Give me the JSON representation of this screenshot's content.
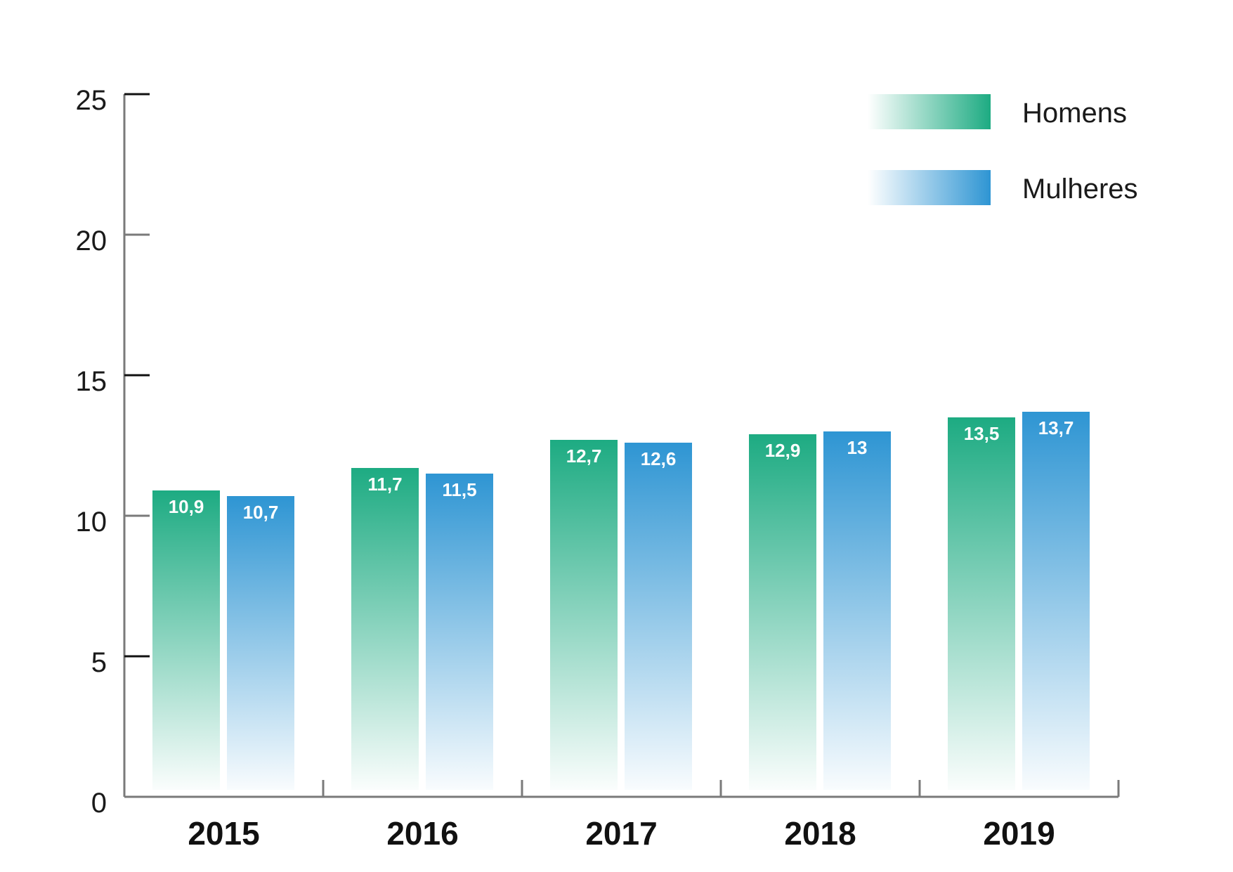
{
  "chart_data": {
    "type": "bar",
    "categories": [
      "2015",
      "2016",
      "2017",
      "2018",
      "2019"
    ],
    "series": [
      {
        "name": "Homens",
        "values": [
          10.9,
          11.7,
          12.7,
          12.9,
          13.5
        ],
        "labels": [
          "10,9",
          "11,7",
          "12,7",
          "12,9",
          "13,5"
        ],
        "color": "#1dab82"
      },
      {
        "name": "Mulheres",
        "values": [
          10.7,
          11.5,
          12.6,
          13,
          13.7
        ],
        "labels": [
          "10,7",
          "11,5",
          "12,6",
          "13",
          "13,7"
        ],
        "color": "#2e95d3"
      }
    ],
    "yticks": [
      "0",
      "5",
      "10",
      "15",
      "20",
      "25"
    ],
    "ylim": [
      0,
      25
    ],
    "grid": false,
    "legend": "top-right",
    "title": "",
    "xlabel": "",
    "ylabel": ""
  }
}
